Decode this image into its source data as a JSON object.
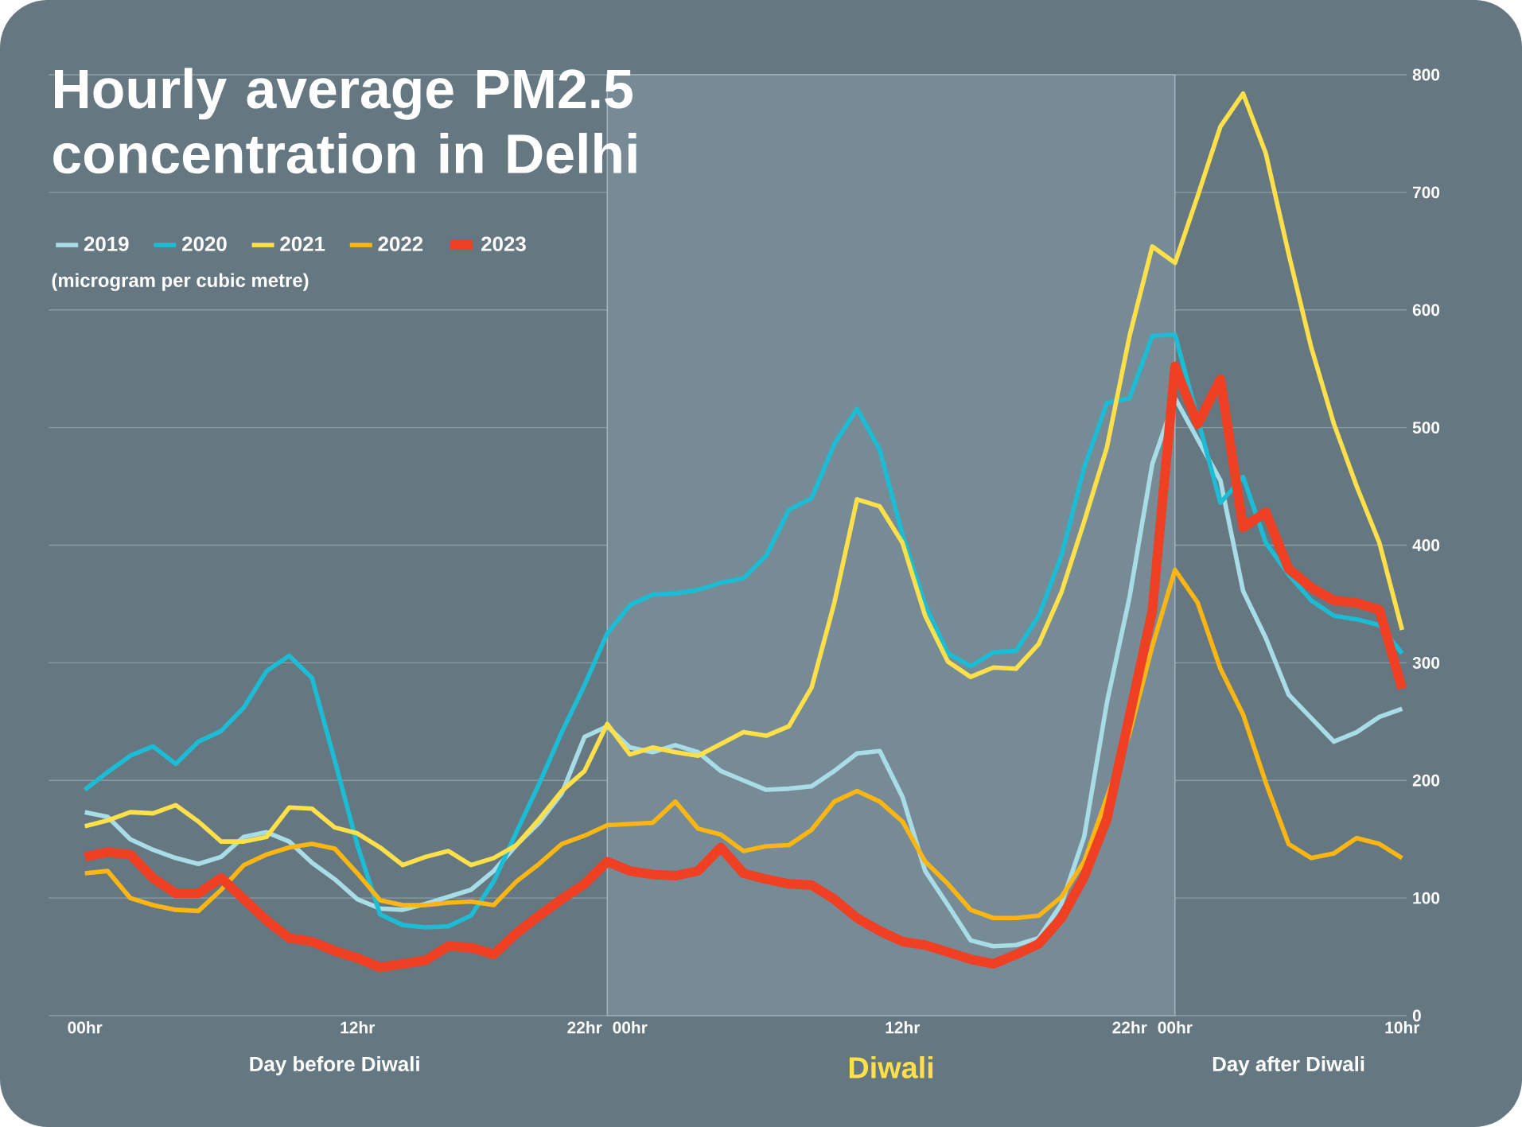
{
  "chart_data": {
    "type": "line",
    "title": "Hourly average PM2.5 concentration  in Delhi",
    "ylabel": "(microgram per cubic metre)",
    "categories": [
      "00hr",
      null,
      null,
      null,
      null,
      null,
      null,
      null,
      null,
      null,
      null,
      null,
      "12hr",
      null,
      null,
      null,
      null,
      null,
      null,
      null,
      null,
      null,
      "22hr",
      null,
      "00hr",
      null,
      null,
      null,
      null,
      null,
      null,
      null,
      null,
      null,
      null,
      null,
      "12hr",
      null,
      null,
      null,
      null,
      null,
      null,
      null,
      null,
      null,
      "22hr",
      null,
      "00hr",
      null,
      null,
      null,
      null,
      null,
      null,
      null,
      null,
      null,
      "10hr"
    ],
    "ylim": [
      0,
      800
    ],
    "yticks": [
      0,
      100,
      200,
      300,
      400,
      500,
      600,
      700,
      800
    ],
    "grid": "y",
    "legend": "top left",
    "annotations": [
      "Day before Diwali",
      "Day after Diwali",
      "Diwali"
    ],
    "series": [
      {
        "name": "2019",
        "color": "#a8dde8",
        "values": [
          173,
          169,
          150,
          141,
          134,
          129,
          135,
          152,
          156,
          148,
          130,
          116,
          99,
          91,
          90,
          95,
          101,
          107,
          123,
          145,
          164,
          189,
          237,
          246,
          228,
          224,
          230,
          224,
          208,
          200,
          192,
          193,
          195,
          208,
          223,
          225,
          186,
          123,
          94,
          64,
          59,
          60,
          66,
          95,
          152,
          266,
          356,
          469,
          525,
          null,
          455,
          361,
          321,
          273,
          253,
          233,
          241,
          254,
          261
        ]
      },
      {
        "name": "2020",
        "color": "#1cbcd4",
        "values": [
          192,
          207,
          221,
          229,
          214,
          233,
          242,
          262,
          293,
          306,
          287,
          217,
          145,
          86,
          77,
          75,
          76,
          85,
          114,
          156,
          197,
          241,
          281,
          325,
          349,
          358,
          359,
          362,
          368,
          372,
          391,
          430,
          440,
          486,
          516,
          481,
          409,
          349,
          308,
          297,
          309,
          310,
          340,
          391,
          466,
          521,
          525,
          578,
          579,
          null,
          436,
          458,
          402,
          375,
          353,
          340,
          337,
          332,
          308
        ]
      },
      {
        "name": "2021",
        "color": "#fde04a",
        "values": [
          161,
          166,
          173,
          172,
          179,
          165,
          148,
          148,
          152,
          177,
          176,
          160,
          155,
          143,
          128,
          135,
          140,
          128,
          134,
          145,
          167,
          191,
          208,
          248,
          222,
          228,
          224,
          221,
          231,
          241,
          238,
          246,
          279,
          351,
          439,
          433,
          402,
          340,
          301,
          288,
          296,
          295,
          316,
          360,
          420,
          483,
          578,
          654,
          640,
          697,
          756,
          784,
          733,
          648,
          568,
          503,
          450,
          402,
          328
        ]
      },
      {
        "name": "2022",
        "color": "#fbb613",
        "values": [
          121,
          123,
          100,
          94,
          90,
          89,
          107,
          128,
          137,
          143,
          146,
          142,
          121,
          98,
          94,
          94,
          96,
          97,
          94,
          114,
          129,
          146,
          153,
          162,
          163,
          164,
          182,
          159,
          154,
          140,
          144,
          145,
          158,
          182,
          191,
          182,
          165,
          131,
          112,
          90,
          83,
          83,
          85,
          101,
          131,
          null,
          240,
          314,
          379,
          351,
          295,
          256,
          198,
          146,
          134,
          138,
          151,
          146,
          134
        ]
      },
      {
        "name": "2023",
        "color": "#ef4023",
        "values": [
          135,
          139,
          137,
          117,
          104,
          104,
          117,
          99,
          81,
          66,
          63,
          55,
          49,
          41,
          44,
          47,
          59,
          58,
          52,
          70,
          85,
          99,
          112,
          131,
          123,
          120,
          119,
          123,
          143,
          121,
          116,
          112,
          111,
          99,
          83,
          72,
          63,
          60,
          54,
          48,
          44,
          52,
          61,
          83,
          118,
          167,
          255,
          344,
          552,
          503,
          541,
          415,
          428,
          380,
          364,
          353,
          351,
          345,
          278
        ]
      }
    ]
  }
}
